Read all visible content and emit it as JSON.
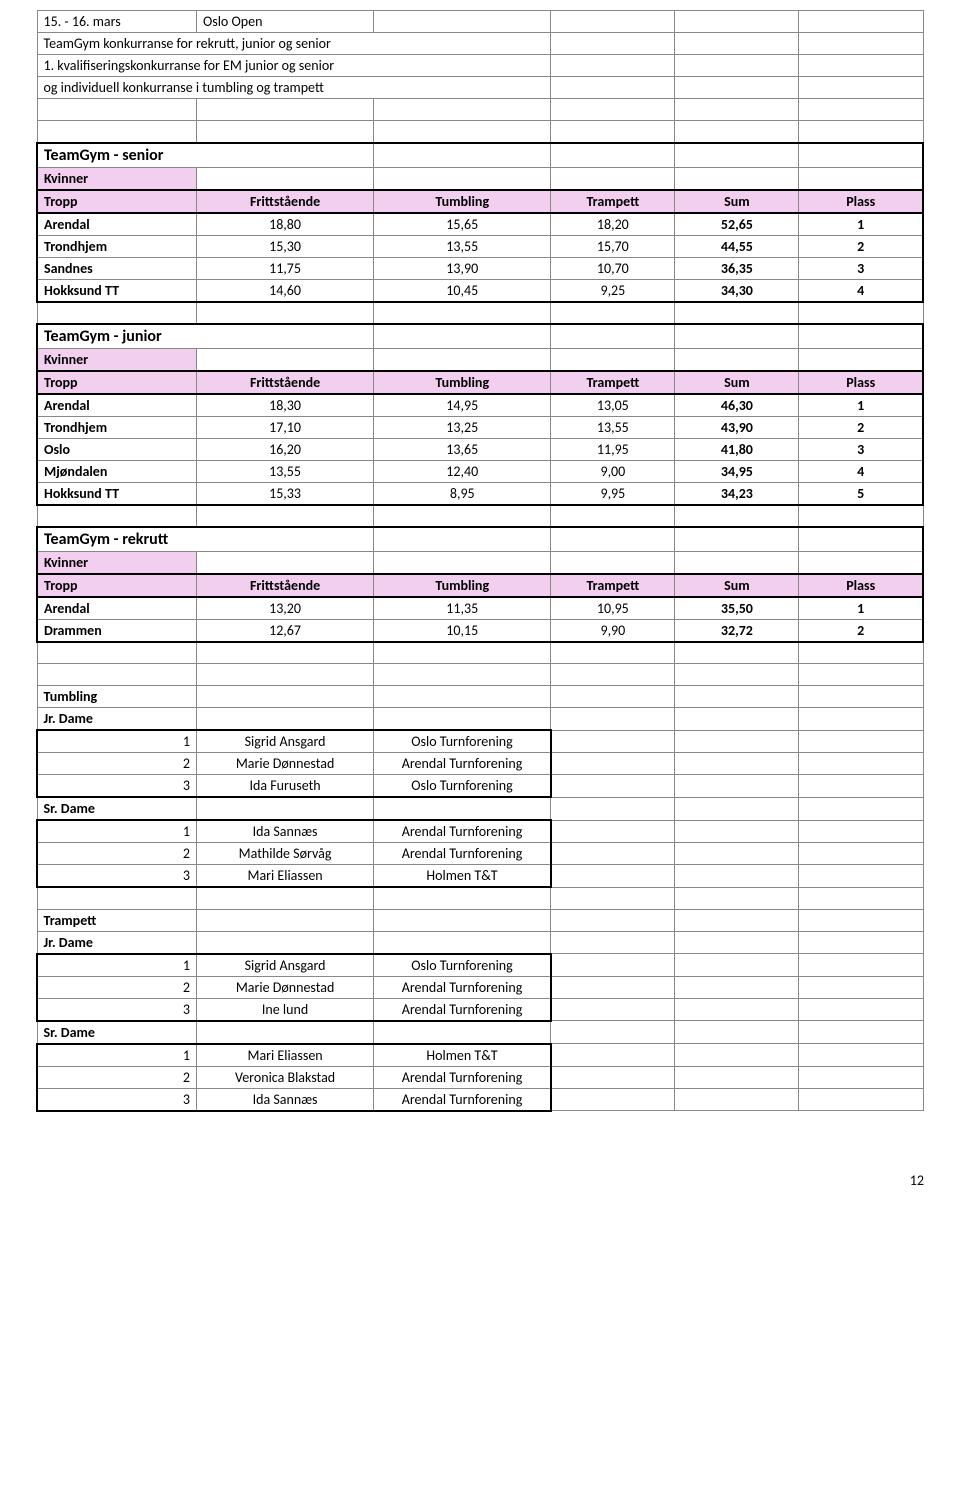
{
  "header": {
    "date": "15. - 16. mars",
    "event": "Oslo Open",
    "line2": "TeamGym konkurranse for rekrutt, junior og senior",
    "line3": "1. kvalifiseringskonkurranse for EM junior og senior",
    "line4": "og individuell konkurranse i tumbling og trampett"
  },
  "columns": [
    "Tropp",
    "Frittstående",
    "Tumbling",
    "Trampett",
    "Sum",
    "Plass"
  ],
  "senior": {
    "title": "TeamGym - senior",
    "sub": "Kvinner",
    "rows": [
      {
        "team": "Arendal",
        "f": "18,80",
        "tu": "15,65",
        "tr": "18,20",
        "sum": "52,65",
        "pl": "1"
      },
      {
        "team": "Trondhjem",
        "f": "15,30",
        "tu": "13,55",
        "tr": "15,70",
        "sum": "44,55",
        "pl": "2"
      },
      {
        "team": "Sandnes",
        "f": "11,75",
        "tu": "13,90",
        "tr": "10,70",
        "sum": "36,35",
        "pl": "3"
      },
      {
        "team": "Hokksund TT",
        "f": "14,60",
        "tu": "10,45",
        "tr": "9,25",
        "sum": "34,30",
        "pl": "4"
      }
    ]
  },
  "junior": {
    "title": "TeamGym - junior",
    "sub": "Kvinner",
    "rows": [
      {
        "team": "Arendal",
        "f": "18,30",
        "tu": "14,95",
        "tr": "13,05",
        "sum": "46,30",
        "pl": "1"
      },
      {
        "team": "Trondhjem",
        "f": "17,10",
        "tu": "13,25",
        "tr": "13,55",
        "sum": "43,90",
        "pl": "2"
      },
      {
        "team": "Oslo",
        "f": "16,20",
        "tu": "13,65",
        "tr": "11,95",
        "sum": "41,80",
        "pl": "3"
      },
      {
        "team": "Mjøndalen",
        "f": "13,55",
        "tu": "12,40",
        "tr": "9,00",
        "sum": "34,95",
        "pl": "4"
      },
      {
        "team": "Hokksund TT",
        "f": "15,33",
        "tu": "8,95",
        "tr": "9,95",
        "sum": "34,23",
        "pl": "5"
      }
    ]
  },
  "rekrutt": {
    "title": "TeamGym - rekrutt",
    "sub": "Kvinner",
    "rows": [
      {
        "team": "Arendal",
        "f": "13,20",
        "tu": "11,35",
        "tr": "10,95",
        "sum": "35,50",
        "pl": "1"
      },
      {
        "team": "Drammen",
        "f": "12,67",
        "tu": "10,15",
        "tr": "9,90",
        "sum": "32,72",
        "pl": "2"
      }
    ]
  },
  "tumbling": {
    "title": "Tumbling",
    "jr": {
      "label": "Jr. Dame",
      "rows": [
        {
          "p": "1",
          "name": "Sigrid Ansgard",
          "club": "Oslo Turnforening"
        },
        {
          "p": "2",
          "name": "Marie Dønnestad",
          "club": "Arendal Turnforening"
        },
        {
          "p": "3",
          "name": "Ida Furuseth",
          "club": "Oslo Turnforening"
        }
      ]
    },
    "sr": {
      "label": "Sr. Dame",
      "rows": [
        {
          "p": "1",
          "name": "Ida Sannæs",
          "club": "Arendal Turnforening"
        },
        {
          "p": "2",
          "name": "Mathilde Sørvåg",
          "club": "Arendal Turnforening"
        },
        {
          "p": "3",
          "name": "Mari Eliassen",
          "club": "Holmen T&T"
        }
      ]
    }
  },
  "trampett": {
    "title": "Trampett",
    "jr": {
      "label": "Jr. Dame",
      "rows": [
        {
          "p": "1",
          "name": "Sigrid Ansgard",
          "club": "Oslo Turnforening"
        },
        {
          "p": "2",
          "name": "Marie Dønnestad",
          "club": "Arendal Turnforening"
        },
        {
          "p": "3",
          "name": "Ine lund",
          "club": "Arendal Turnforening"
        }
      ]
    },
    "sr": {
      "label": "Sr. Dame",
      "rows": [
        {
          "p": "1",
          "name": "Mari Eliassen",
          "club": "Holmen T&T"
        },
        {
          "p": "2",
          "name": "Veronica Blakstad",
          "club": "Arendal Turnforening"
        },
        {
          "p": "3",
          "name": "Ida Sannæs",
          "club": "Arendal Turnforening"
        }
      ]
    }
  },
  "page": "12",
  "colors": {
    "pink": "#f2ceef",
    "grid": "#888888",
    "thick": "#000000"
  }
}
